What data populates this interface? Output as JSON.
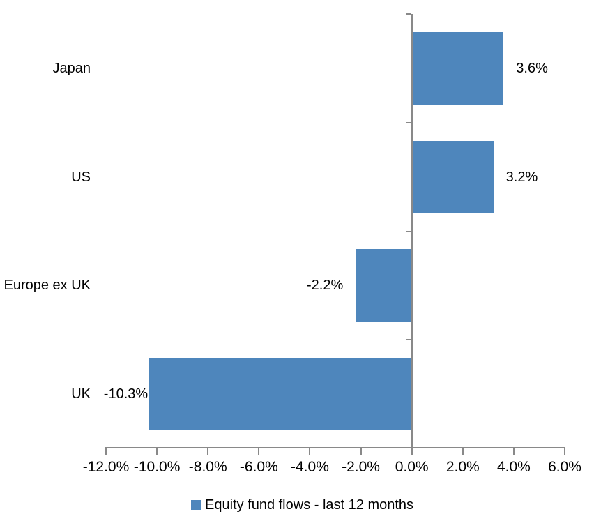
{
  "chart_data": {
    "type": "bar",
    "orientation": "horizontal",
    "categories": [
      "Japan",
      "US",
      "Europe ex UK",
      "UK"
    ],
    "series": [
      {
        "name": "Equity fund flows - last 12 months",
        "values": [
          3.6,
          3.2,
          -2.2,
          -10.3
        ]
      }
    ],
    "data_labels": [
      "3.6%",
      "3.2%",
      "-2.2%",
      "-10.3%"
    ],
    "x_axis": {
      "tick_labels": [
        "-12.0%",
        "-10.0%",
        "-8.0%",
        "-6.0%",
        "-4.0%",
        "-2.0%",
        "0.0%",
        "2.0%",
        "4.0%",
        "6.0%"
      ],
      "tick_values": [
        -12,
        -10,
        -8,
        -6,
        -4,
        -2,
        0,
        2,
        4,
        6
      ],
      "range": [
        -12,
        6
      ]
    },
    "legend": {
      "label": "Equity fund flows - last 12 months",
      "position": "bottom",
      "marker": "square"
    },
    "colors": {
      "bar": "#4E86BC",
      "axis": "#898989",
      "text": "#000000",
      "background": "#FFFFFF"
    },
    "grid": false
  }
}
